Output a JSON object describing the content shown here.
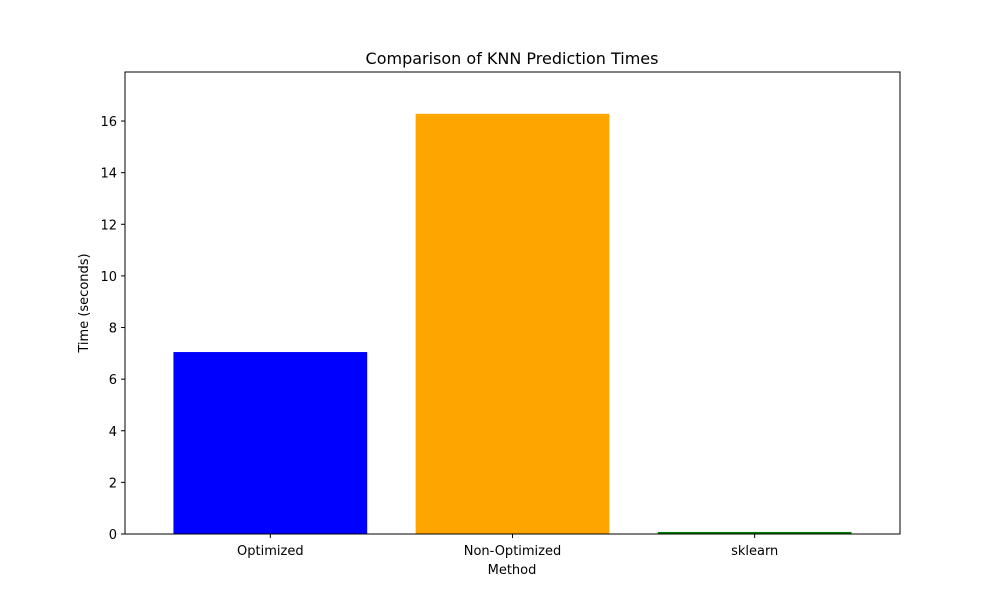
{
  "chart_data": {
    "type": "bar",
    "title": "Comparison of KNN Prediction Times",
    "xlabel": "Method",
    "ylabel": "Time (seconds)",
    "categories": [
      "Optimized",
      "Non-Optimized",
      "sklearn"
    ],
    "values": [
      7.05,
      16.28,
      0.08
    ],
    "colors": [
      "#0000ff",
      "#ffa500",
      "#008000"
    ],
    "ylim": [
      0,
      17.9
    ],
    "yticks": [
      0,
      2,
      4,
      6,
      8,
      10,
      12,
      14,
      16
    ],
    "grid": false,
    "legend": false
  }
}
